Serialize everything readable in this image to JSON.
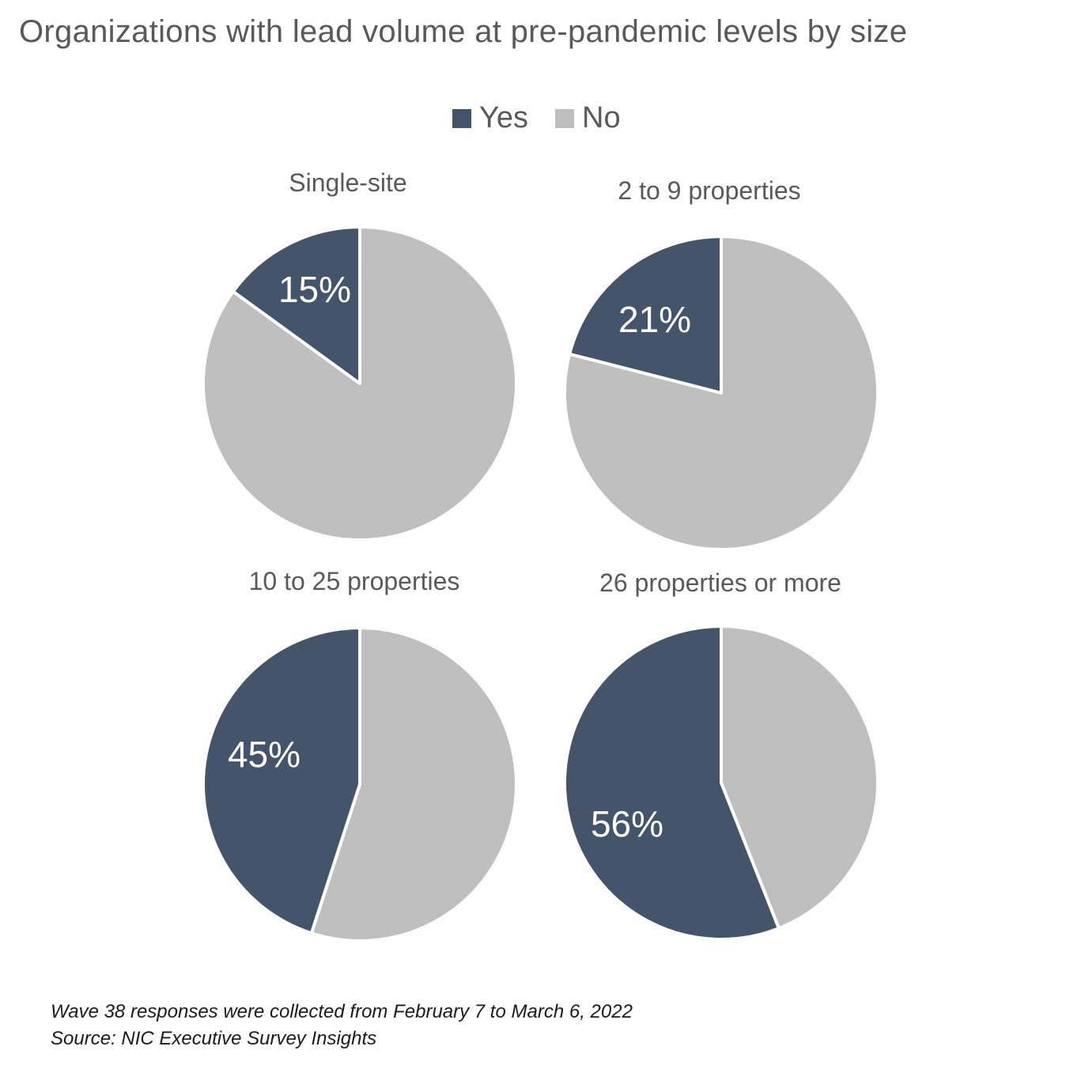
{
  "title": "Organizations with lead volume at pre-pandemic levels by size",
  "footnotes": {
    "line1": "Wave 38 responses were collected from February 7 to March 6, 2022",
    "line2": "Source: NIC Executive Survey Insights"
  },
  "colors": {
    "yes": "#44546a",
    "no": "#bfbfbf"
  },
  "chart_data": {
    "type": "pie",
    "title": "Organizations with lead volume at pre-pandemic levels by size",
    "legend": {
      "position": "top",
      "entries": [
        "Yes",
        "No"
      ]
    },
    "charts": [
      {
        "title": "Single-site",
        "slices": [
          {
            "name": "Yes",
            "value": 15,
            "label": "15%"
          },
          {
            "name": "No",
            "value": 85
          }
        ]
      },
      {
        "title": "2 to 9 properties",
        "slices": [
          {
            "name": "Yes",
            "value": 21,
            "label": "21%"
          },
          {
            "name": "No",
            "value": 79
          }
        ]
      },
      {
        "title": "10 to 25 properties",
        "slices": [
          {
            "name": "Yes",
            "value": 45,
            "label": "45%"
          },
          {
            "name": "No",
            "value": 55
          }
        ]
      },
      {
        "title": "26 properties or more",
        "slices": [
          {
            "name": "Yes",
            "value": 56,
            "label": "56%"
          },
          {
            "name": "No",
            "value": 44
          }
        ]
      }
    ]
  }
}
